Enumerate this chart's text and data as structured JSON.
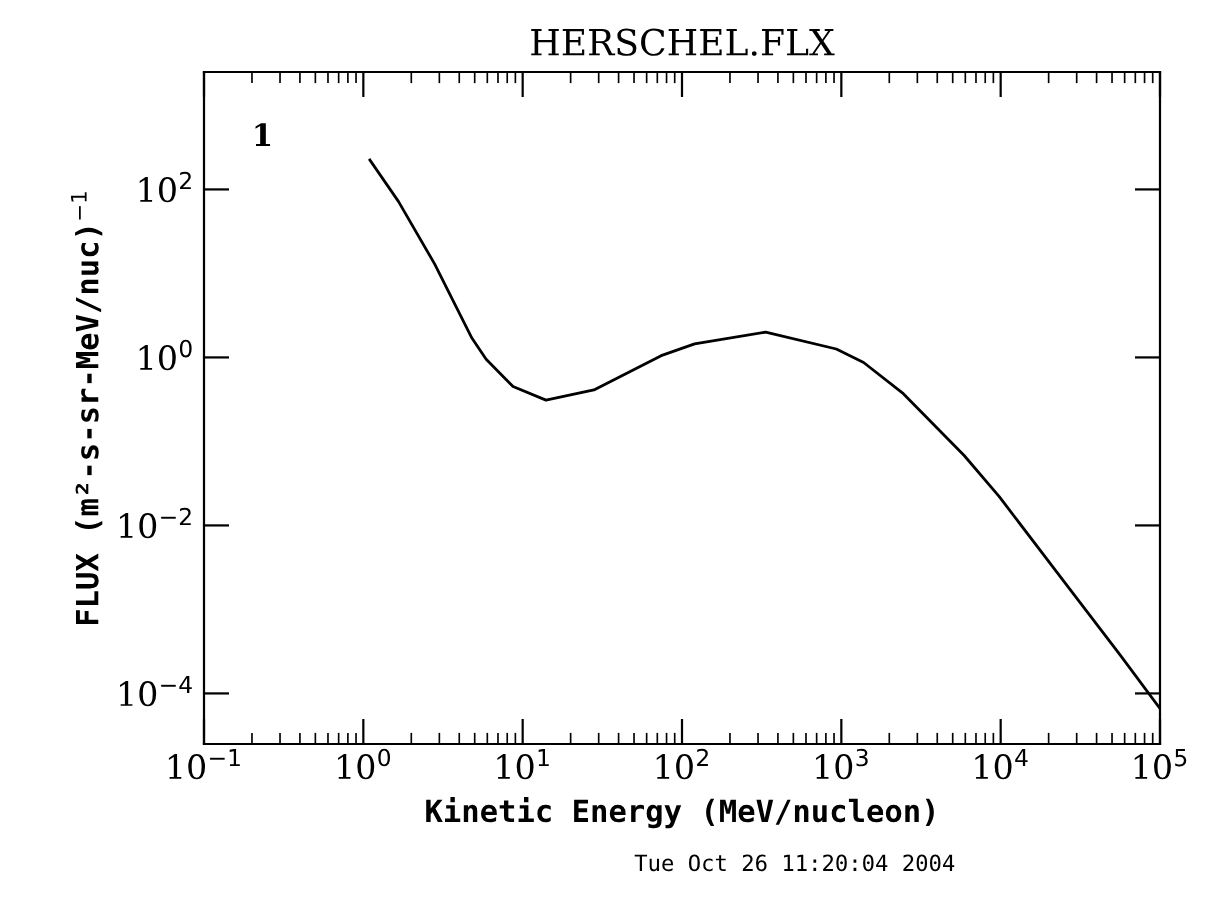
{
  "chart_data": {
    "type": "line",
    "title": "HERSCHEL.FLX",
    "xlabel": "Kinetic Energy (MeV/nucleon)",
    "ylabel": "FLUX (m²-s-sr-MeV/nuc)$^{−1}$",
    "x": [
      1.1,
      1.66,
      2.8,
      4.8,
      5.9,
      8.7,
      14,
      28,
      74,
      120,
      335,
      930,
      1380,
      2450,
      5900,
      9800,
      25700,
      56000,
      100000
    ],
    "series": [
      {
        "color": "#000000",
        "values": [
          224,
          72,
          13,
          1.7,
          0.95,
          0.45,
          0.31,
          0.41,
          1.05,
          1.45,
          2.0,
          1.26,
          0.87,
          0.37,
          0.068,
          0.022,
          0.002,
          0.00029,
          6.6e-05
        ]
      }
    ],
    "log": "xy",
    "xlim": [
      0.1,
      100000
    ],
    "ylim": [
      2.5e-05,
      2500
    ],
    "xticks": [
      {
        "value": 0.1,
        "label": "10$^{−1}$"
      },
      {
        "value": 1,
        "label": "10$^{0}$"
      },
      {
        "value": 10,
        "label": "10$^{1}$"
      },
      {
        "value": 100,
        "label": "10$^{2}$"
      },
      {
        "value": 1000,
        "label": "10$^{3}$"
      },
      {
        "value": 10000,
        "label": "10$^{4}$"
      },
      {
        "value": 100000,
        "label": "10$^{5}$"
      }
    ],
    "yticks": [
      {
        "value": 0.0001,
        "label": "10$^{−4}$"
      },
      {
        "value": 0.01,
        "label": "10$^{−2}$"
      },
      {
        "value": 1,
        "label": "10$^{0}$"
      },
      {
        "value": 100,
        "label": "10$^{2}$"
      }
    ],
    "grid": false,
    "legend": false,
    "marker": "none",
    "line_style": "solid",
    "annotations": [
      "1",
      "Tue Oct 26 11:20:04 2004"
    ]
  }
}
